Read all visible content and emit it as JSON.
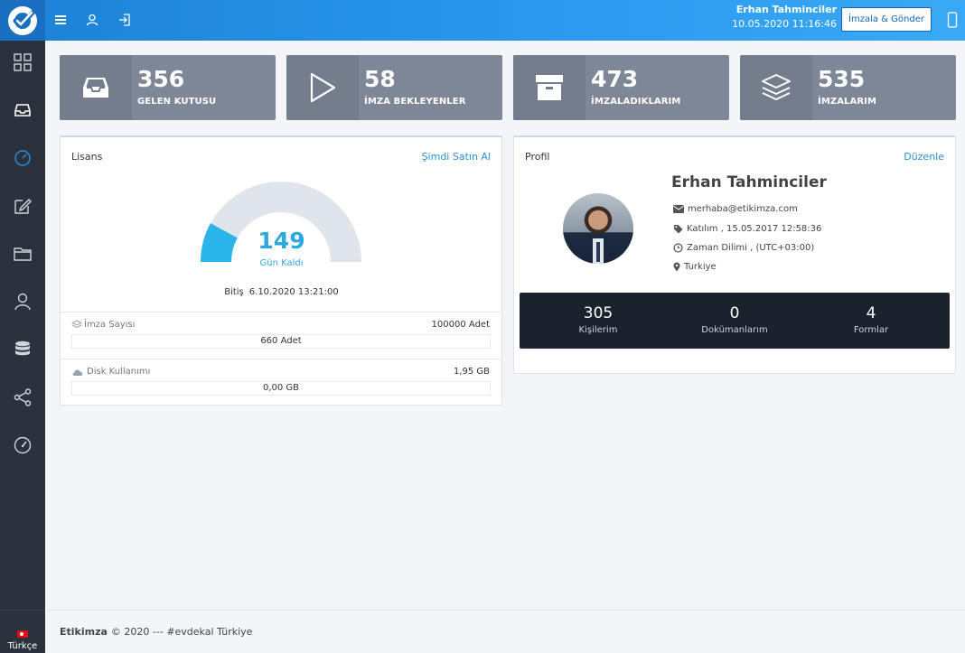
{
  "header": {
    "user_name": "Erhan Tahminciler",
    "datetime": "10.05.2020 11:16:46",
    "sign_button": "İmzala & Gönder",
    "icons": [
      "menu-icon",
      "user-icon",
      "logout-icon",
      "mobile-icon"
    ]
  },
  "sidebar": {
    "items": [
      "dashboard-icon",
      "inbox-icon",
      "gauge-icon",
      "edit-icon",
      "folder-icon",
      "user-icon",
      "database-icon",
      "share-icon",
      "speedometer-icon"
    ],
    "active_index": 2,
    "language": "Türkçe"
  },
  "stats": [
    {
      "value": "356",
      "label": "GELEN KUTUSU",
      "icon": "inbox-icon"
    },
    {
      "value": "58",
      "label": "İMZA BEKLEYENLER",
      "icon": "play-icon"
    },
    {
      "value": "473",
      "label": "İMZALADIKLARIM",
      "icon": "archive-icon"
    },
    {
      "value": "535",
      "label": "İMZALARIM",
      "icon": "layers-icon"
    }
  ],
  "license": {
    "title": "Lisans",
    "buy_link": "Şimdi Satın Al",
    "days_left": "149",
    "days_label": "Gün Kaldı",
    "gauge_fraction": 0.16,
    "end_label": "Bitiş",
    "end_date": "6.10.2020 13:21:00",
    "signature_label": "İmza Sayısı",
    "signature_total": "100000 Adet",
    "signature_used": "660 Adet",
    "disk_label": "Disk Kullanımı",
    "disk_total": "1,95 GB",
    "disk_used": "0,00 GB"
  },
  "profile": {
    "title": "Profil",
    "edit_link": "Düzenle",
    "name": "Erhan Tahminciler",
    "email": "merhaba@etikimza.com",
    "joined": "Katılım , 15.05.2017 12:58:36",
    "timezone": "Zaman Dilimi , (UTC+03:00)",
    "country": "Turkiye",
    "counts": [
      {
        "value": "305",
        "label": "Kişilerim"
      },
      {
        "value": "0",
        "label": "Dokümanlarım"
      },
      {
        "value": "4",
        "label": "Formlar"
      }
    ]
  },
  "footer": {
    "brand": "Etikimza",
    "text": "© 2020 --- #evdekal Türkiye"
  },
  "colors": {
    "header_blue": "#2b9af0",
    "sidebar": "#2c323d",
    "stat_card": "#7d8797",
    "accent": "#2aa9e0",
    "stats_bar": "#1a222e"
  }
}
